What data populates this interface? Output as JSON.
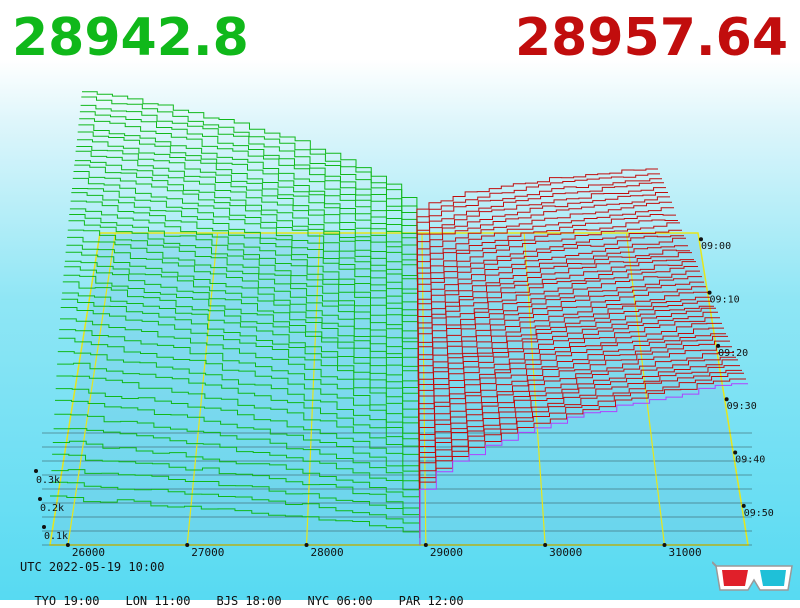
{
  "header": {
    "bid_price": "28942.8",
    "ask_price": "28957.64"
  },
  "footer": {
    "utc": "UTC 2022-05-19 10:00",
    "zones": [
      "TYO 19:00",
      "LON 11:00",
      "BJS 18:00",
      "NYC 06:00",
      "PAR 12:00"
    ]
  },
  "colors": {
    "bid": "#10b81a",
    "ask": "#c10d0d",
    "grid": "#e6e61c",
    "latest_ask": "#b040ff"
  },
  "icons": {
    "glasses": "3d-glasses-icon"
  },
  "chart_data": {
    "type": "area",
    "x_ticks": [
      "26000",
      "27000",
      "28000",
      "29000",
      "30000",
      "31000"
    ],
    "x_tick_values": [
      26000,
      27000,
      28000,
      29000,
      30000,
      31000
    ],
    "xlim": [
      25850,
      31700
    ],
    "time_ticks": [
      "09:00",
      "09:10",
      "09:20",
      "09:30",
      "09:40",
      "09:50"
    ],
    "time_tick_values": [
      0,
      10,
      20,
      30,
      40,
      50
    ],
    "depth_ticks": [
      "0.1k",
      "0.2k",
      "0.3k"
    ],
    "depth_tick_values": [
      100,
      200,
      300
    ],
    "series": [
      {
        "side": "bid",
        "price_range": [
          25850,
          28942.8
        ],
        "max_cumulative_size": [
          330,
          300,
          280,
          260,
          240,
          220,
          200,
          160,
          110,
          60
        ]
      },
      {
        "side": "ask",
        "price_range": [
          28957.64,
          31700
        ],
        "max_cumulative_size": [
          160,
          170,
          175,
          180,
          190,
          195,
          205,
          210,
          215,
          220
        ]
      }
    ]
  }
}
